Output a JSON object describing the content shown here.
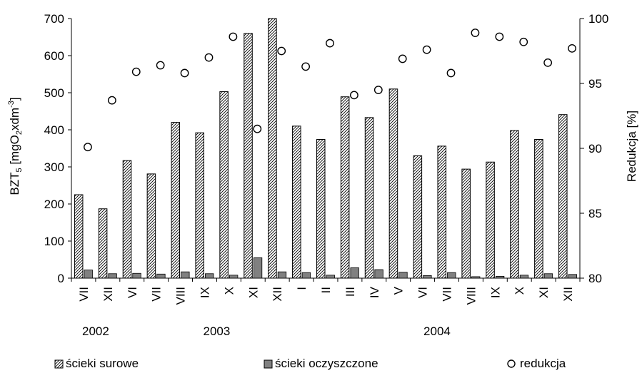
{
  "chart_data": {
    "type": "bar",
    "categories": [
      "VII",
      "XII",
      "VI",
      "VII",
      "VIII",
      "IX",
      "X",
      "XI",
      "XII",
      "I",
      "II",
      "III",
      "IV",
      "V",
      "VI",
      "VII",
      "VIII",
      "IX",
      "X",
      "XI",
      "XII"
    ],
    "year_labels": [
      "2002",
      "2003",
      "2004"
    ],
    "ylabel_left": {
      "base": "BZT",
      "sub1": "5",
      "mid": " [mgO",
      "sub2": "2",
      "mid2": "xdm",
      "sup": "-3",
      "end": "]"
    },
    "ylabel_right": "Redukcja [%]",
    "ylim_left": [
      0,
      700
    ],
    "yticks_left": [
      "0",
      "100",
      "200",
      "300",
      "400",
      "500",
      "600",
      "700"
    ],
    "ylim_right": [
      80,
      100
    ],
    "yticks_right": [
      "80",
      "85",
      "90",
      "95",
      "100"
    ],
    "series": [
      {
        "name": "ścieki surowe",
        "axis": "left",
        "kind": "bar",
        "pattern": "hatch",
        "values": [
          225,
          187,
          317,
          281,
          420,
          392,
          503,
          660,
          720,
          410,
          374,
          489,
          433,
          510,
          330,
          356,
          294,
          313,
          398,
          374,
          441
        ]
      },
      {
        "name": "ścieki oczyszczone",
        "axis": "left",
        "kind": "bar",
        "color": "#808080",
        "values": [
          22,
          12,
          13,
          11,
          17,
          12,
          8,
          55,
          17,
          15,
          8,
          28,
          23,
          16,
          7,
          15,
          4,
          5,
          8,
          12,
          10
        ]
      },
      {
        "name": "redukcja",
        "axis": "right",
        "kind": "scatter",
        "values": [
          90.1,
          93.7,
          95.9,
          96.4,
          95.8,
          97.0,
          98.6,
          91.5,
          97.5,
          96.3,
          98.1,
          94.1,
          94.5,
          96.9,
          97.6,
          95.8,
          98.9,
          98.6,
          98.2,
          96.6,
          97.7
        ]
      }
    ],
    "grid": false,
    "legend_position": "bottom"
  }
}
